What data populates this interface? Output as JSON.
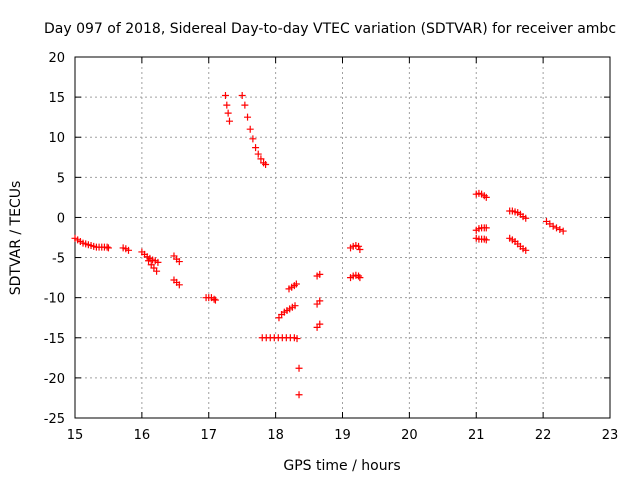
{
  "chart_data": {
    "type": "scatter",
    "title": "Day 097 of 2018, Sidereal Day-to-day VTEC variation (SDTVAR) for receiver ambc",
    "xlabel": "GPS time / hours",
    "ylabel": "SDTVAR / TECUs",
    "xlim": [
      15,
      23
    ],
    "ylim": [
      -25,
      20
    ],
    "xticks": [
      15,
      16,
      17,
      18,
      19,
      20,
      21,
      22,
      23
    ],
    "yticks": [
      -25,
      -20,
      -15,
      -10,
      -5,
      0,
      5,
      10,
      15,
      20
    ],
    "grid": true,
    "marker": "+",
    "color": "#ff0000",
    "series": [
      {
        "name": "SDTVAR",
        "points": [
          [
            15.0,
            -2.6
          ],
          [
            15.04,
            -2.8
          ],
          [
            15.08,
            -3.0
          ],
          [
            15.12,
            -3.2
          ],
          [
            15.16,
            -3.3
          ],
          [
            15.2,
            -3.4
          ],
          [
            15.24,
            -3.5
          ],
          [
            15.28,
            -3.6
          ],
          [
            15.32,
            -3.7
          ],
          [
            15.36,
            -3.7
          ],
          [
            15.4,
            -3.7
          ],
          [
            15.44,
            -3.7
          ],
          [
            15.48,
            -3.7
          ],
          [
            15.5,
            -3.8
          ],
          [
            15.72,
            -3.8
          ],
          [
            15.76,
            -3.9
          ],
          [
            15.8,
            -4.1
          ],
          [
            16.0,
            -4.3
          ],
          [
            16.04,
            -4.6
          ],
          [
            16.08,
            -4.9
          ],
          [
            16.12,
            -5.1
          ],
          [
            16.16,
            -5.3
          ],
          [
            16.2,
            -5.4
          ],
          [
            16.24,
            -5.6
          ],
          [
            16.1,
            -5.4
          ],
          [
            16.14,
            -5.9
          ],
          [
            16.18,
            -6.3
          ],
          [
            16.22,
            -6.7
          ],
          [
            16.48,
            -4.8
          ],
          [
            16.52,
            -5.2
          ],
          [
            16.56,
            -5.5
          ],
          [
            16.48,
            -7.8
          ],
          [
            16.52,
            -8.1
          ],
          [
            16.56,
            -8.4
          ],
          [
            16.96,
            -10.0
          ],
          [
            17.0,
            -10.0
          ],
          [
            17.04,
            -10.0
          ],
          [
            17.08,
            -10.2
          ],
          [
            17.1,
            -10.3
          ],
          [
            17.25,
            15.2
          ],
          [
            17.27,
            14.0
          ],
          [
            17.29,
            13.0
          ],
          [
            17.31,
            12.0
          ],
          [
            17.5,
            15.2
          ],
          [
            17.54,
            14.0
          ],
          [
            17.58,
            12.5
          ],
          [
            17.62,
            11.0
          ],
          [
            17.66,
            9.8
          ],
          [
            17.7,
            8.7
          ],
          [
            17.74,
            7.9
          ],
          [
            17.78,
            7.3
          ],
          [
            17.82,
            6.8
          ],
          [
            17.85,
            6.6
          ],
          [
            17.8,
            -15.0
          ],
          [
            17.86,
            -15.0
          ],
          [
            17.92,
            -15.0
          ],
          [
            17.98,
            -15.0
          ],
          [
            18.04,
            -15.0
          ],
          [
            18.1,
            -15.0
          ],
          [
            18.16,
            -15.0
          ],
          [
            18.22,
            -15.0
          ],
          [
            18.28,
            -15.0
          ],
          [
            18.32,
            -15.1
          ],
          [
            18.05,
            -12.5
          ],
          [
            18.09,
            -12.1
          ],
          [
            18.13,
            -11.8
          ],
          [
            18.17,
            -11.6
          ],
          [
            18.21,
            -11.4
          ],
          [
            18.25,
            -11.2
          ],
          [
            18.29,
            -11.0
          ],
          [
            18.2,
            -8.9
          ],
          [
            18.24,
            -8.7
          ],
          [
            18.28,
            -8.5
          ],
          [
            18.31,
            -8.3
          ],
          [
            18.35,
            -18.8
          ],
          [
            18.35,
            -22.1
          ],
          [
            18.62,
            -7.3
          ],
          [
            18.66,
            -7.1
          ],
          [
            18.62,
            -10.8
          ],
          [
            18.66,
            -10.4
          ],
          [
            18.62,
            -13.7
          ],
          [
            18.66,
            -13.3
          ],
          [
            19.12,
            -3.8
          ],
          [
            19.16,
            -3.6
          ],
          [
            19.2,
            -3.5
          ],
          [
            19.24,
            -3.6
          ],
          [
            19.26,
            -4.0
          ],
          [
            19.12,
            -7.5
          ],
          [
            19.16,
            -7.3
          ],
          [
            19.2,
            -7.2
          ],
          [
            19.24,
            -7.3
          ],
          [
            19.26,
            -7.5
          ],
          [
            21.0,
            2.9
          ],
          [
            21.04,
            3.0
          ],
          [
            21.08,
            2.9
          ],
          [
            21.12,
            2.7
          ],
          [
            21.15,
            2.5
          ],
          [
            21.0,
            -1.6
          ],
          [
            21.04,
            -1.4
          ],
          [
            21.08,
            -1.3
          ],
          [
            21.12,
            -1.3
          ],
          [
            21.15,
            -1.3
          ],
          [
            21.0,
            -2.6
          ],
          [
            21.04,
            -2.7
          ],
          [
            21.08,
            -2.7
          ],
          [
            21.12,
            -2.7
          ],
          [
            21.15,
            -2.8
          ],
          [
            21.5,
            0.8
          ],
          [
            21.54,
            0.8
          ],
          [
            21.58,
            0.7
          ],
          [
            21.62,
            0.6
          ],
          [
            21.66,
            0.4
          ],
          [
            21.7,
            0.1
          ],
          [
            21.74,
            -0.1
          ],
          [
            21.5,
            -2.6
          ],
          [
            21.54,
            -2.8
          ],
          [
            21.58,
            -3.0
          ],
          [
            21.62,
            -3.3
          ],
          [
            21.66,
            -3.6
          ],
          [
            21.7,
            -3.9
          ],
          [
            21.74,
            -4.1
          ],
          [
            22.05,
            -0.5
          ],
          [
            22.1,
            -0.8
          ],
          [
            22.15,
            -1.1
          ],
          [
            22.2,
            -1.3
          ],
          [
            22.25,
            -1.5
          ],
          [
            22.3,
            -1.7
          ]
        ]
      }
    ]
  }
}
